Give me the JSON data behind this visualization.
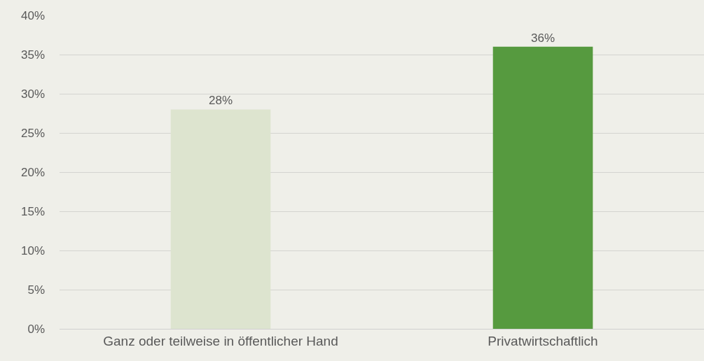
{
  "chart_data": {
    "type": "bar",
    "categories": [
      "Ganz oder teilweise in öffentlicher Hand",
      "Privatwirtschaftlich"
    ],
    "values": [
      28,
      36
    ],
    "colors": [
      "#dde4cf",
      "#569a3f"
    ],
    "value_labels": [
      "28%",
      "36%"
    ],
    "ylim": [
      0,
      40
    ],
    "yticks": [
      {
        "value": 0,
        "label": "0%"
      },
      {
        "value": 5,
        "label": "5%"
      },
      {
        "value": 10,
        "label": "10%"
      },
      {
        "value": 15,
        "label": "15%"
      },
      {
        "value": 20,
        "label": "20%"
      },
      {
        "value": 25,
        "label": "25%"
      },
      {
        "value": 30,
        "label": "30%"
      },
      {
        "value": 35,
        "label": "35%"
      },
      {
        "value": 40,
        "label": "40%"
      }
    ],
    "grid": "y",
    "legend": false
  }
}
